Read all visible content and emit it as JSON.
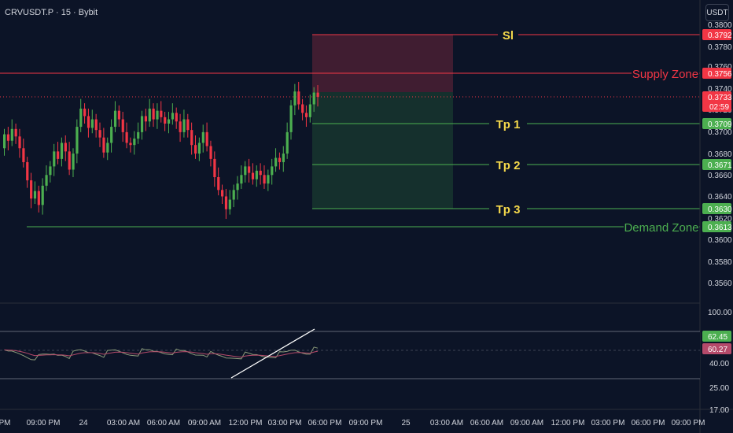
{
  "header": {
    "symbol": "CRVUSDT.P · 15 · Bybit",
    "currency": "USDT"
  },
  "colors": {
    "bg": "#0c1427",
    "up": "#4caf50",
    "down": "#f23645",
    "supply": "#f23645",
    "demand": "#4caf50",
    "tp_label": "#f5d94b",
    "grid_text": "#d1d4dc",
    "rsi_line": "#8b9a7a",
    "rsi_ma": "#b54a6a"
  },
  "price_axis": {
    "ticks": [
      "0.3800",
      "0.3780",
      "0.3760",
      "0.3740",
      "0.3720",
      "0.3700",
      "0.3680",
      "0.3660",
      "0.3640",
      "0.3620",
      "0.3600",
      "0.3580",
      "0.3560"
    ],
    "tags": [
      {
        "label": "0.3792",
        "kind": "red"
      },
      {
        "label": "0.3756",
        "kind": "red"
      },
      {
        "label": "0.3733",
        "kind": "red",
        "sub": "02:59"
      },
      {
        "label": "0.3709",
        "kind": "green"
      },
      {
        "label": "0.3671",
        "kind": "green"
      },
      {
        "label": "0.3630",
        "kind": "green"
      },
      {
        "label": "0.3613",
        "kind": "green"
      }
    ]
  },
  "annotations": {
    "sl": {
      "label": "Sl",
      "price": 0.3792
    },
    "supply": {
      "label": "Supply Zone",
      "price": 0.3756
    },
    "tp1": {
      "label": "Tp 1",
      "price": 0.3709
    },
    "tp2": {
      "label": "Tp 2",
      "price": 0.3671
    },
    "tp3": {
      "label": "Tp 3",
      "price": 0.363
    },
    "demand": {
      "label": "Demand Zone",
      "price": 0.3613
    },
    "current": {
      "price": 0.3733
    }
  },
  "rsi_axis": {
    "ticks": [
      "100.00",
      "40.00",
      "25.00",
      "17.00"
    ],
    "tags": [
      {
        "label": "62.45",
        "kind": "green"
      },
      {
        "label": "60.27",
        "kind": "red"
      }
    ]
  },
  "time_axis": {
    "ticks": [
      "PM",
      "09:00 PM",
      "24",
      "03:00 AM",
      "06:00 AM",
      "09:00 AM",
      "12:00 PM",
      "03:00 PM",
      "06:00 PM",
      "09:00 PM",
      "25",
      "03:00 AM",
      "06:00 AM",
      "09:00 AM",
      "12:00 PM",
      "03:00 PM",
      "06:00 PM",
      "09:00 PM"
    ]
  },
  "candles": [
    [
      0.3685,
      0.3698
    ],
    [
      0.3698,
      0.3692
    ],
    [
      0.3692,
      0.3703
    ],
    [
      0.3703,
      0.3696
    ],
    [
      0.3696,
      0.3685
    ],
    [
      0.3685,
      0.3672
    ],
    [
      0.3672,
      0.3655
    ],
    [
      0.3655,
      0.3638
    ],
    [
      0.3638,
      0.3645
    ],
    [
      0.3645,
      0.3632
    ],
    [
      0.3632,
      0.365
    ],
    [
      0.365,
      0.366
    ],
    [
      0.366,
      0.3668
    ],
    [
      0.3668,
      0.3682
    ],
    [
      0.3682,
      0.3675
    ],
    [
      0.3675,
      0.369
    ],
    [
      0.369,
      0.3682
    ],
    [
      0.3682,
      0.3665
    ],
    [
      0.3665,
      0.368
    ],
    [
      0.368,
      0.3705
    ],
    [
      0.3705,
      0.3722
    ],
    [
      0.3722,
      0.3715
    ],
    [
      0.3715,
      0.3704
    ],
    [
      0.3704,
      0.3712
    ],
    [
      0.3712,
      0.3702
    ],
    [
      0.3702,
      0.3695
    ],
    [
      0.3695,
      0.3681
    ],
    [
      0.3681,
      0.369
    ],
    [
      0.369,
      0.3705
    ],
    [
      0.3705,
      0.372
    ],
    [
      0.372,
      0.3712
    ],
    [
      0.3712,
      0.37
    ],
    [
      0.37,
      0.369
    ],
    [
      0.369,
      0.3688
    ],
    [
      0.3688,
      0.3694
    ],
    [
      0.3694,
      0.37
    ],
    [
      0.37,
      0.3715
    ],
    [
      0.3715,
      0.371
    ],
    [
      0.371,
      0.3722
    ],
    [
      0.3722,
      0.3712
    ],
    [
      0.3712,
      0.372
    ],
    [
      0.372,
      0.3714
    ],
    [
      0.3714,
      0.3708
    ],
    [
      0.3708,
      0.3712
    ],
    [
      0.3712,
      0.3718
    ],
    [
      0.3718,
      0.371
    ],
    [
      0.371,
      0.37
    ],
    [
      0.37,
      0.3712
    ],
    [
      0.3712,
      0.3702
    ],
    [
      0.3702,
      0.3688
    ],
    [
      0.3688,
      0.368
    ],
    [
      0.368,
      0.369
    ],
    [
      0.369,
      0.37
    ],
    [
      0.37,
      0.3687
    ],
    [
      0.3687,
      0.3675
    ],
    [
      0.3675,
      0.3658
    ],
    [
      0.3658,
      0.3646
    ],
    [
      0.3646,
      0.364
    ],
    [
      0.364,
      0.3628
    ],
    [
      0.3628,
      0.3637
    ],
    [
      0.3637,
      0.3646
    ],
    [
      0.3646,
      0.3652
    ],
    [
      0.3652,
      0.366
    ],
    [
      0.366,
      0.3668
    ],
    [
      0.3668,
      0.3662
    ],
    [
      0.3662,
      0.3656
    ],
    [
      0.3656,
      0.3664
    ],
    [
      0.3664,
      0.366
    ],
    [
      0.366,
      0.3652
    ],
    [
      0.3652,
      0.366
    ],
    [
      0.366,
      0.3668
    ],
    [
      0.3668,
      0.3676
    ],
    [
      0.3676,
      0.3672
    ],
    [
      0.3672,
      0.368
    ],
    [
      0.368,
      0.37
    ],
    [
      0.37,
      0.3725
    ],
    [
      0.3725,
      0.3738
    ],
    [
      0.3738,
      0.3726
    ],
    [
      0.3726,
      0.3718
    ],
    [
      0.3718,
      0.3714
    ],
    [
      0.3714,
      0.3726
    ],
    [
      0.3726,
      0.3737
    ],
    [
      0.3737,
      0.3733
    ]
  ]
}
